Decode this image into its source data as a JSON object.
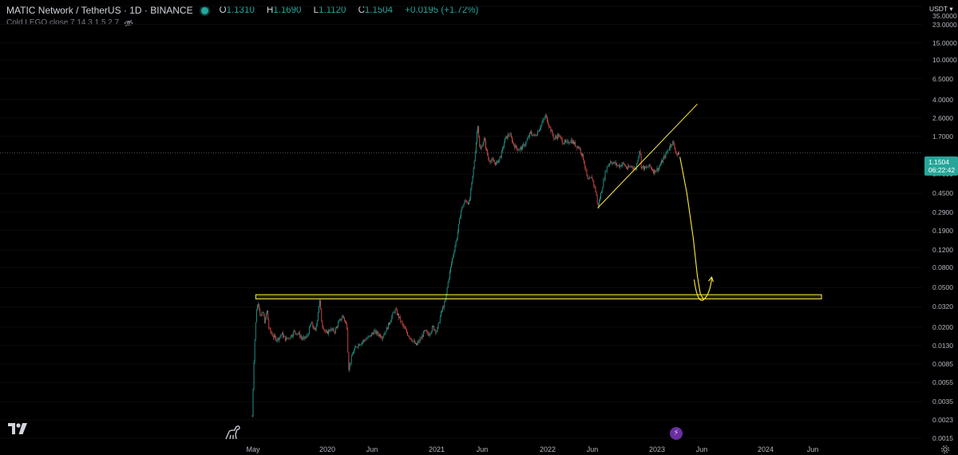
{
  "header": {
    "title": "MATIC Network / TetherUS · 1D · BINANCE",
    "ohlc": [
      {
        "key": "O",
        "value": "1.1310"
      },
      {
        "key": "H",
        "value": "1.1690"
      },
      {
        "key": "L",
        "value": "1.1120"
      },
      {
        "key": "C",
        "value": "1.1504"
      },
      {
        "key": "",
        "value": "+0.0195 (+1.72%)"
      }
    ],
    "status_color": "#26a69a"
  },
  "indicator": {
    "label": "Cold LEGO close 7 14 3 1.5 2 7"
  },
  "axis": {
    "currency": "USDT ▾",
    "price_tag": "1.1504",
    "countdown": "06:22:42"
  },
  "chart_data": {
    "type": "candlestick",
    "symbol": "MATIC Network / TetherUS",
    "interval": "1D",
    "exchange": "BINANCE",
    "scale": "log",
    "y_ticks": [
      "35.0000",
      "23.0000",
      "15.0000",
      "10.0000",
      "6.5000",
      "4.0000",
      "2.6000",
      "1.7000",
      "1.1504",
      "0.7000",
      "0.4500",
      "0.2900",
      "0.1900",
      "0.1200",
      "0.0800",
      "0.0500",
      "0.0320",
      "0.0200",
      "0.0130",
      "0.0085",
      "0.0055",
      "0.0035",
      "0.0023",
      "0.0015"
    ],
    "x_ticks": [
      "May",
      "2020",
      "Jun",
      "2021",
      "Jun",
      "2022",
      "Jun",
      "2023",
      "Jun",
      "2024",
      "Jun"
    ],
    "ylim": [
      0.0015,
      35
    ],
    "last_price": 1.1504,
    "up_color": "#26a69a",
    "down_color": "#ef5350",
    "drawing_color": "#ffeb3b",
    "price_path": [
      [
        "2019-04-28",
        0.0025
      ],
      [
        "2019-05-05",
        0.012
      ],
      [
        "2019-05-12",
        0.03
      ],
      [
        "2019-05-19",
        0.036
      ],
      [
        "2019-05-26",
        0.025
      ],
      [
        "2019-06-02",
        0.028
      ],
      [
        "2019-06-09",
        0.022
      ],
      [
        "2019-06-16",
        0.03
      ],
      [
        "2019-06-23",
        0.019
      ],
      [
        "2019-07-07",
        0.016
      ],
      [
        "2019-07-21",
        0.015
      ],
      [
        "2019-08-04",
        0.017
      ],
      [
        "2019-08-18",
        0.015
      ],
      [
        "2019-09-01",
        0.016
      ],
      [
        "2019-09-15",
        0.018
      ],
      [
        "2019-09-29",
        0.017
      ],
      [
        "2019-10-13",
        0.015
      ],
      [
        "2019-10-27",
        0.016
      ],
      [
        "2019-11-10",
        0.022
      ],
      [
        "2019-11-24",
        0.018
      ],
      [
        "2019-12-08",
        0.038
      ],
      [
        "2019-12-15",
        0.022
      ],
      [
        "2019-12-29",
        0.017
      ],
      [
        "2020-01-12",
        0.019
      ],
      [
        "2020-01-26",
        0.018
      ],
      [
        "2020-02-09",
        0.022
      ],
      [
        "2020-02-23",
        0.026
      ],
      [
        "2020-03-08",
        0.02
      ],
      [
        "2020-03-13",
        0.0075
      ],
      [
        "2020-03-27",
        0.011
      ],
      [
        "2020-04-10",
        0.013
      ],
      [
        "2020-04-24",
        0.014
      ],
      [
        "2020-05-08",
        0.015
      ],
      [
        "2020-05-22",
        0.016
      ],
      [
        "2020-06-05",
        0.018
      ],
      [
        "2020-06-19",
        0.017
      ],
      [
        "2020-07-03",
        0.016
      ],
      [
        "2020-07-17",
        0.019
      ],
      [
        "2020-07-31",
        0.024
      ],
      [
        "2020-08-14",
        0.03
      ],
      [
        "2020-08-28",
        0.025
      ],
      [
        "2020-09-11",
        0.02
      ],
      [
        "2020-09-25",
        0.017
      ],
      [
        "2020-10-09",
        0.015
      ],
      [
        "2020-10-23",
        0.013
      ],
      [
        "2020-11-06",
        0.015
      ],
      [
        "2020-11-20",
        0.018
      ],
      [
        "2020-12-04",
        0.017
      ],
      [
        "2020-12-18",
        0.02
      ],
      [
        "2020-12-31",
        0.018
      ],
      [
        "2021-01-14",
        0.028
      ],
      [
        "2021-01-28",
        0.036
      ],
      [
        "2021-02-07",
        0.06
      ],
      [
        "2021-02-21",
        0.1
      ],
      [
        "2021-03-07",
        0.16
      ],
      [
        "2021-03-21",
        0.3
      ],
      [
        "2021-04-04",
        0.38
      ],
      [
        "2021-04-18",
        0.36
      ],
      [
        "2021-05-02",
        0.8
      ],
      [
        "2021-05-16",
        2.3
      ],
      [
        "2021-05-23",
        1.2
      ],
      [
        "2021-06-06",
        1.6
      ],
      [
        "2021-06-20",
        1.0
      ],
      [
        "2021-07-04",
        0.95
      ],
      [
        "2021-07-18",
        0.9
      ],
      [
        "2021-08-01",
        1.1
      ],
      [
        "2021-08-15",
        1.6
      ],
      [
        "2021-08-29",
        1.8
      ],
      [
        "2021-09-12",
        1.4
      ],
      [
        "2021-09-26",
        1.25
      ],
      [
        "2021-10-10",
        1.3
      ],
      [
        "2021-10-24",
        1.5
      ],
      [
        "2021-11-07",
        1.85
      ],
      [
        "2021-11-21",
        1.7
      ],
      [
        "2021-12-05",
        2.0
      ],
      [
        "2021-12-27",
        2.75
      ],
      [
        "2022-01-10",
        2.1
      ],
      [
        "2022-01-24",
        1.6
      ],
      [
        "2022-02-07",
        1.75
      ],
      [
        "2022-02-21",
        1.5
      ],
      [
        "2022-03-07",
        1.45
      ],
      [
        "2022-03-21",
        1.55
      ],
      [
        "2022-04-04",
        1.4
      ],
      [
        "2022-04-18",
        1.3
      ],
      [
        "2022-05-02",
        1.0
      ],
      [
        "2022-05-16",
        0.6
      ],
      [
        "2022-05-30",
        0.65
      ],
      [
        "2022-06-13",
        0.45
      ],
      [
        "2022-06-18",
        0.32
      ],
      [
        "2022-07-02",
        0.5
      ],
      [
        "2022-07-16",
        0.8
      ],
      [
        "2022-07-30",
        0.95
      ],
      [
        "2022-08-13",
        0.9
      ],
      [
        "2022-08-27",
        0.85
      ],
      [
        "2022-09-10",
        0.9
      ],
      [
        "2022-09-24",
        0.8
      ],
      [
        "2022-10-08",
        0.85
      ],
      [
        "2022-10-22",
        0.78
      ],
      [
        "2022-11-05",
        1.3
      ],
      [
        "2022-11-09",
        0.85
      ],
      [
        "2022-11-23",
        0.8
      ],
      [
        "2022-12-07",
        0.85
      ],
      [
        "2022-12-21",
        0.75
      ],
      [
        "2023-01-04",
        0.8
      ],
      [
        "2023-01-18",
        0.95
      ],
      [
        "2023-02-01",
        1.15
      ],
      [
        "2023-02-15",
        1.4
      ],
      [
        "2023-02-22",
        1.5
      ],
      [
        "2023-03-01",
        1.25
      ],
      [
        "2023-03-10",
        1.1
      ],
      [
        "2023-03-15",
        1.1504
      ]
    ],
    "annotations": {
      "support_zone": {
        "low": 0.0385,
        "high": 0.0425,
        "from": "2019-05-10",
        "to": "2024-06-30"
      },
      "trendline": {
        "from": [
          "2022-06-18",
          0.32
        ],
        "to": [
          "2023-05-15",
          3.6
        ]
      },
      "projection": [
        [
          "2023-03-18",
          1.05
        ],
        [
          "2023-04-10",
          0.45
        ],
        [
          "2023-05-01",
          0.16
        ],
        [
          "2023-05-15",
          0.065
        ],
        [
          "2023-05-25",
          0.043
        ],
        [
          "2023-06-05",
          0.038
        ]
      ]
    }
  }
}
